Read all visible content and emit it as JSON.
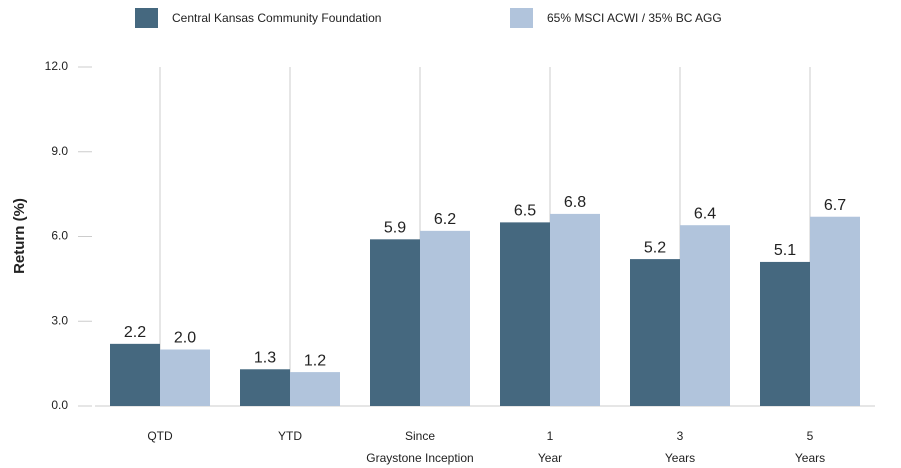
{
  "chart_data": {
    "type": "bar",
    "categories": [
      [
        "QTD"
      ],
      [
        "YTD"
      ],
      [
        "Since",
        "Graystone Inception"
      ],
      [
        "1",
        "Year"
      ],
      [
        "3",
        "Years"
      ],
      [
        "5",
        "Years"
      ]
    ],
    "series": [
      {
        "name": "Central Kansas Community Foundation",
        "color": "#45687f",
        "values": [
          2.2,
          1.3,
          5.9,
          6.5,
          5.2,
          5.1
        ],
        "value_labels": [
          "2.2",
          "1.3",
          "5.9",
          "6.5",
          "5.2",
          "5.1"
        ]
      },
      {
        "name": "65% MSCI ACWI / 35% BC AGG",
        "color": "#b1c4dc",
        "values": [
          2.0,
          1.2,
          6.2,
          6.8,
          6.4,
          6.7
        ],
        "value_labels": [
          "2.0",
          "1.2",
          "6.2",
          "6.8",
          "6.4",
          "6.7"
        ]
      }
    ],
    "y_label": "Return (%)",
    "ylim": [
      0,
      12
    ],
    "yticks": [
      {
        "value": 0,
        "label": "0.0"
      },
      {
        "value": 3,
        "label": "3.0"
      },
      {
        "value": 6,
        "label": "6.0"
      },
      {
        "value": 9,
        "label": "9.0"
      },
      {
        "value": 12,
        "label": "12.0"
      }
    ]
  }
}
